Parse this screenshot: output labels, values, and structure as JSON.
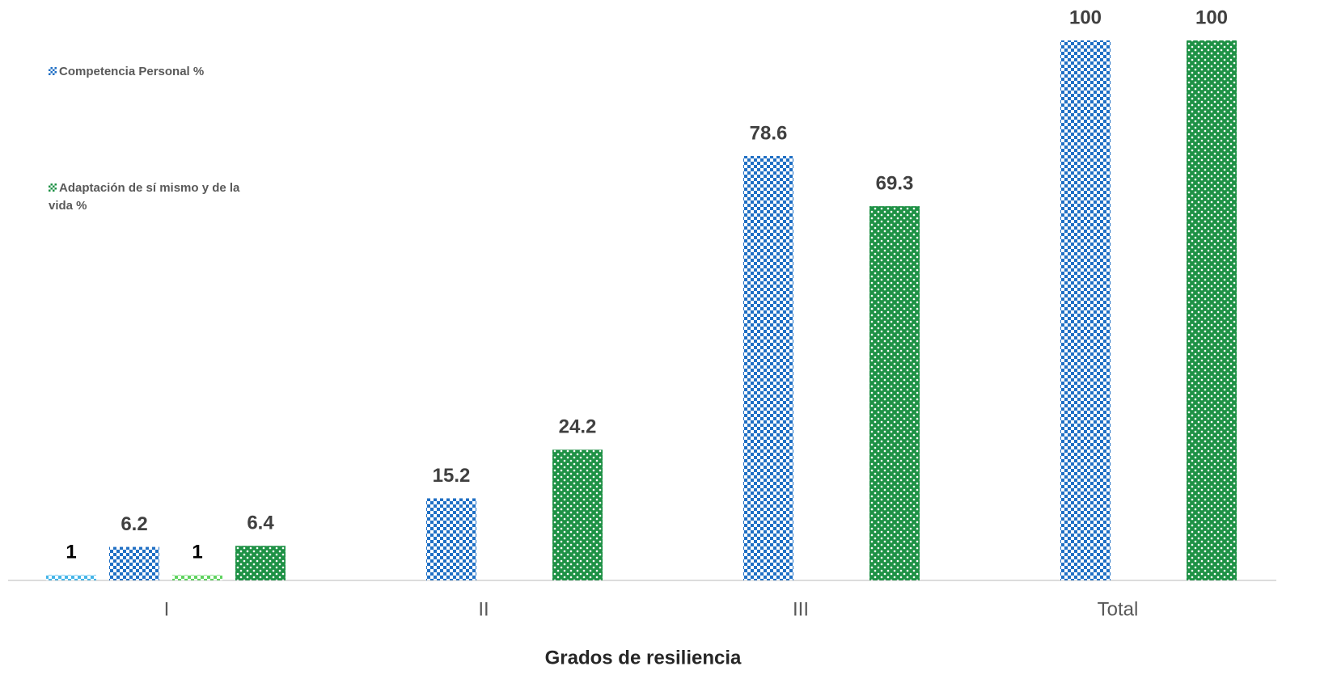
{
  "chart_data": {
    "type": "bar",
    "x_label": "Grados de resiliencia",
    "categories": [
      "I",
      "II",
      "III",
      "Total"
    ],
    "series": [
      {
        "color": "#45b5e8",
        "values": [
          1,
          null,
          null,
          null
        ]
      },
      {
        "name": "Competencia Personal %",
        "color": "#1f6fc4",
        "values": [
          6.2,
          15.2,
          78.6,
          100
        ]
      },
      {
        "color": "#5fd35f",
        "values": [
          1,
          null,
          null,
          null
        ]
      },
      {
        "name": "Adaptación de sí mismo y de la vida %",
        "color": "#1e9145",
        "values": [
          6.4,
          24.2,
          69.3,
          100
        ]
      }
    ],
    "ylim": [
      0,
      100
    ],
    "legend": "left"
  }
}
